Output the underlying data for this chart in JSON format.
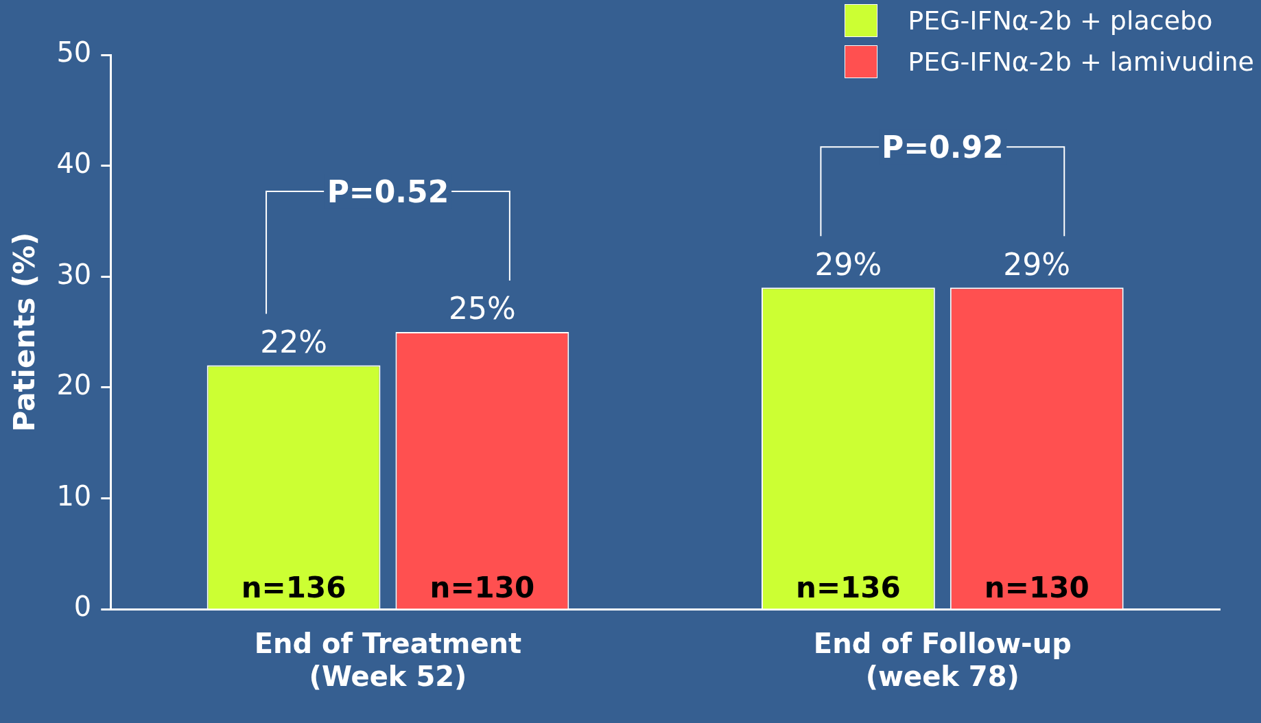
{
  "chart_data": {
    "type": "bar",
    "ylabel": "Patients (%)",
    "categories": [
      "End of Treatment\n(Week 52)",
      "End of Follow-up\n(week 78)"
    ],
    "series": [
      {
        "name": "PEG-IFNα-2b + placebo",
        "color": "#ccff33",
        "values": [
          22,
          29
        ],
        "value_labels": [
          "22%",
          "29%"
        ]
      },
      {
        "name": "PEG-IFNα-2b + lamivudine",
        "color": "#ff5050",
        "values": [
          25,
          29
        ],
        "value_labels": [
          "25%",
          "29%"
        ]
      }
    ],
    "ylim": [
      0,
      50
    ],
    "yticks": [
      0,
      10,
      20,
      30,
      40,
      50
    ],
    "grid": false,
    "legend": "top right",
    "annotations": [
      "P=0.52",
      "P=0.92",
      "n=136",
      "n=130",
      "n=136",
      "n=130"
    ]
  }
}
